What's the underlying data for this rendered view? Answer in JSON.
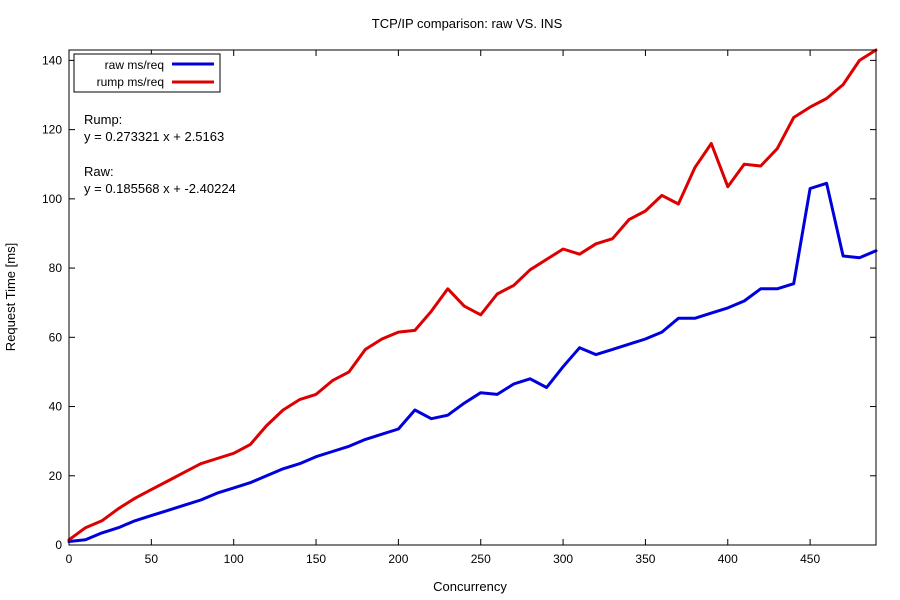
{
  "chart_data": {
    "type": "line",
    "title": "TCP/IP comparison: raw VS. INS",
    "xlabel": "Concurrency",
    "ylabel": "Request Time [ms]",
    "xlim": [
      0,
      490
    ],
    "ylim": [
      0,
      143
    ],
    "xticks": [
      0,
      50,
      100,
      150,
      200,
      250,
      300,
      350,
      400,
      450
    ],
    "yticks": [
      0,
      20,
      40,
      60,
      80,
      100,
      120,
      140
    ],
    "grid": false,
    "legend_position": "top-left",
    "x": [
      0,
      10,
      20,
      30,
      40,
      50,
      60,
      70,
      80,
      90,
      100,
      110,
      120,
      130,
      140,
      150,
      160,
      170,
      180,
      190,
      200,
      210,
      220,
      230,
      240,
      250,
      260,
      270,
      280,
      290,
      300,
      310,
      320,
      330,
      340,
      350,
      360,
      370,
      380,
      390,
      400,
      410,
      420,
      430,
      440,
      450,
      460,
      470,
      480,
      490
    ],
    "series": [
      {
        "name": "raw ms/req",
        "color": "#0000dd",
        "values": [
          1,
          1.5,
          3.5,
          5,
          7,
          8.5,
          10,
          11.5,
          13,
          15,
          16.5,
          18,
          20,
          22,
          23.5,
          25.5,
          27,
          28.5,
          30.5,
          32,
          33.5,
          39,
          36.5,
          37.5,
          41,
          44,
          43.5,
          46.5,
          48,
          45.5,
          51.5,
          57,
          55,
          56.5,
          58,
          59.5,
          61.5,
          65.5,
          65.5,
          67,
          68.5,
          70.5,
          74,
          74,
          75.5,
          103,
          104.5,
          83.5,
          83,
          85
        ]
      },
      {
        "name": "rump ms/req",
        "color": "#dd0000",
        "values": [
          1.5,
          5,
          7,
          10.5,
          13.5,
          16,
          18.5,
          21,
          23.5,
          25,
          26.5,
          29,
          34.5,
          39,
          42,
          43.5,
          47.5,
          50,
          56.5,
          59.5,
          61.5,
          62,
          67.5,
          74,
          69,
          66.5,
          72.5,
          75,
          79.5,
          82.5,
          85.5,
          84,
          87,
          88.5,
          94,
          96.5,
          101,
          98.5,
          109,
          116,
          103.5,
          110,
          109.5,
          114.5,
          123.5,
          126.5,
          129,
          133,
          140,
          143
        ]
      }
    ],
    "annotations": [
      {
        "label": "Rump:",
        "equation": "y = 0.273321 x + 2.5163"
      },
      {
        "label": "Raw:",
        "equation": "y = 0.185568 x + -2.40224"
      }
    ]
  }
}
